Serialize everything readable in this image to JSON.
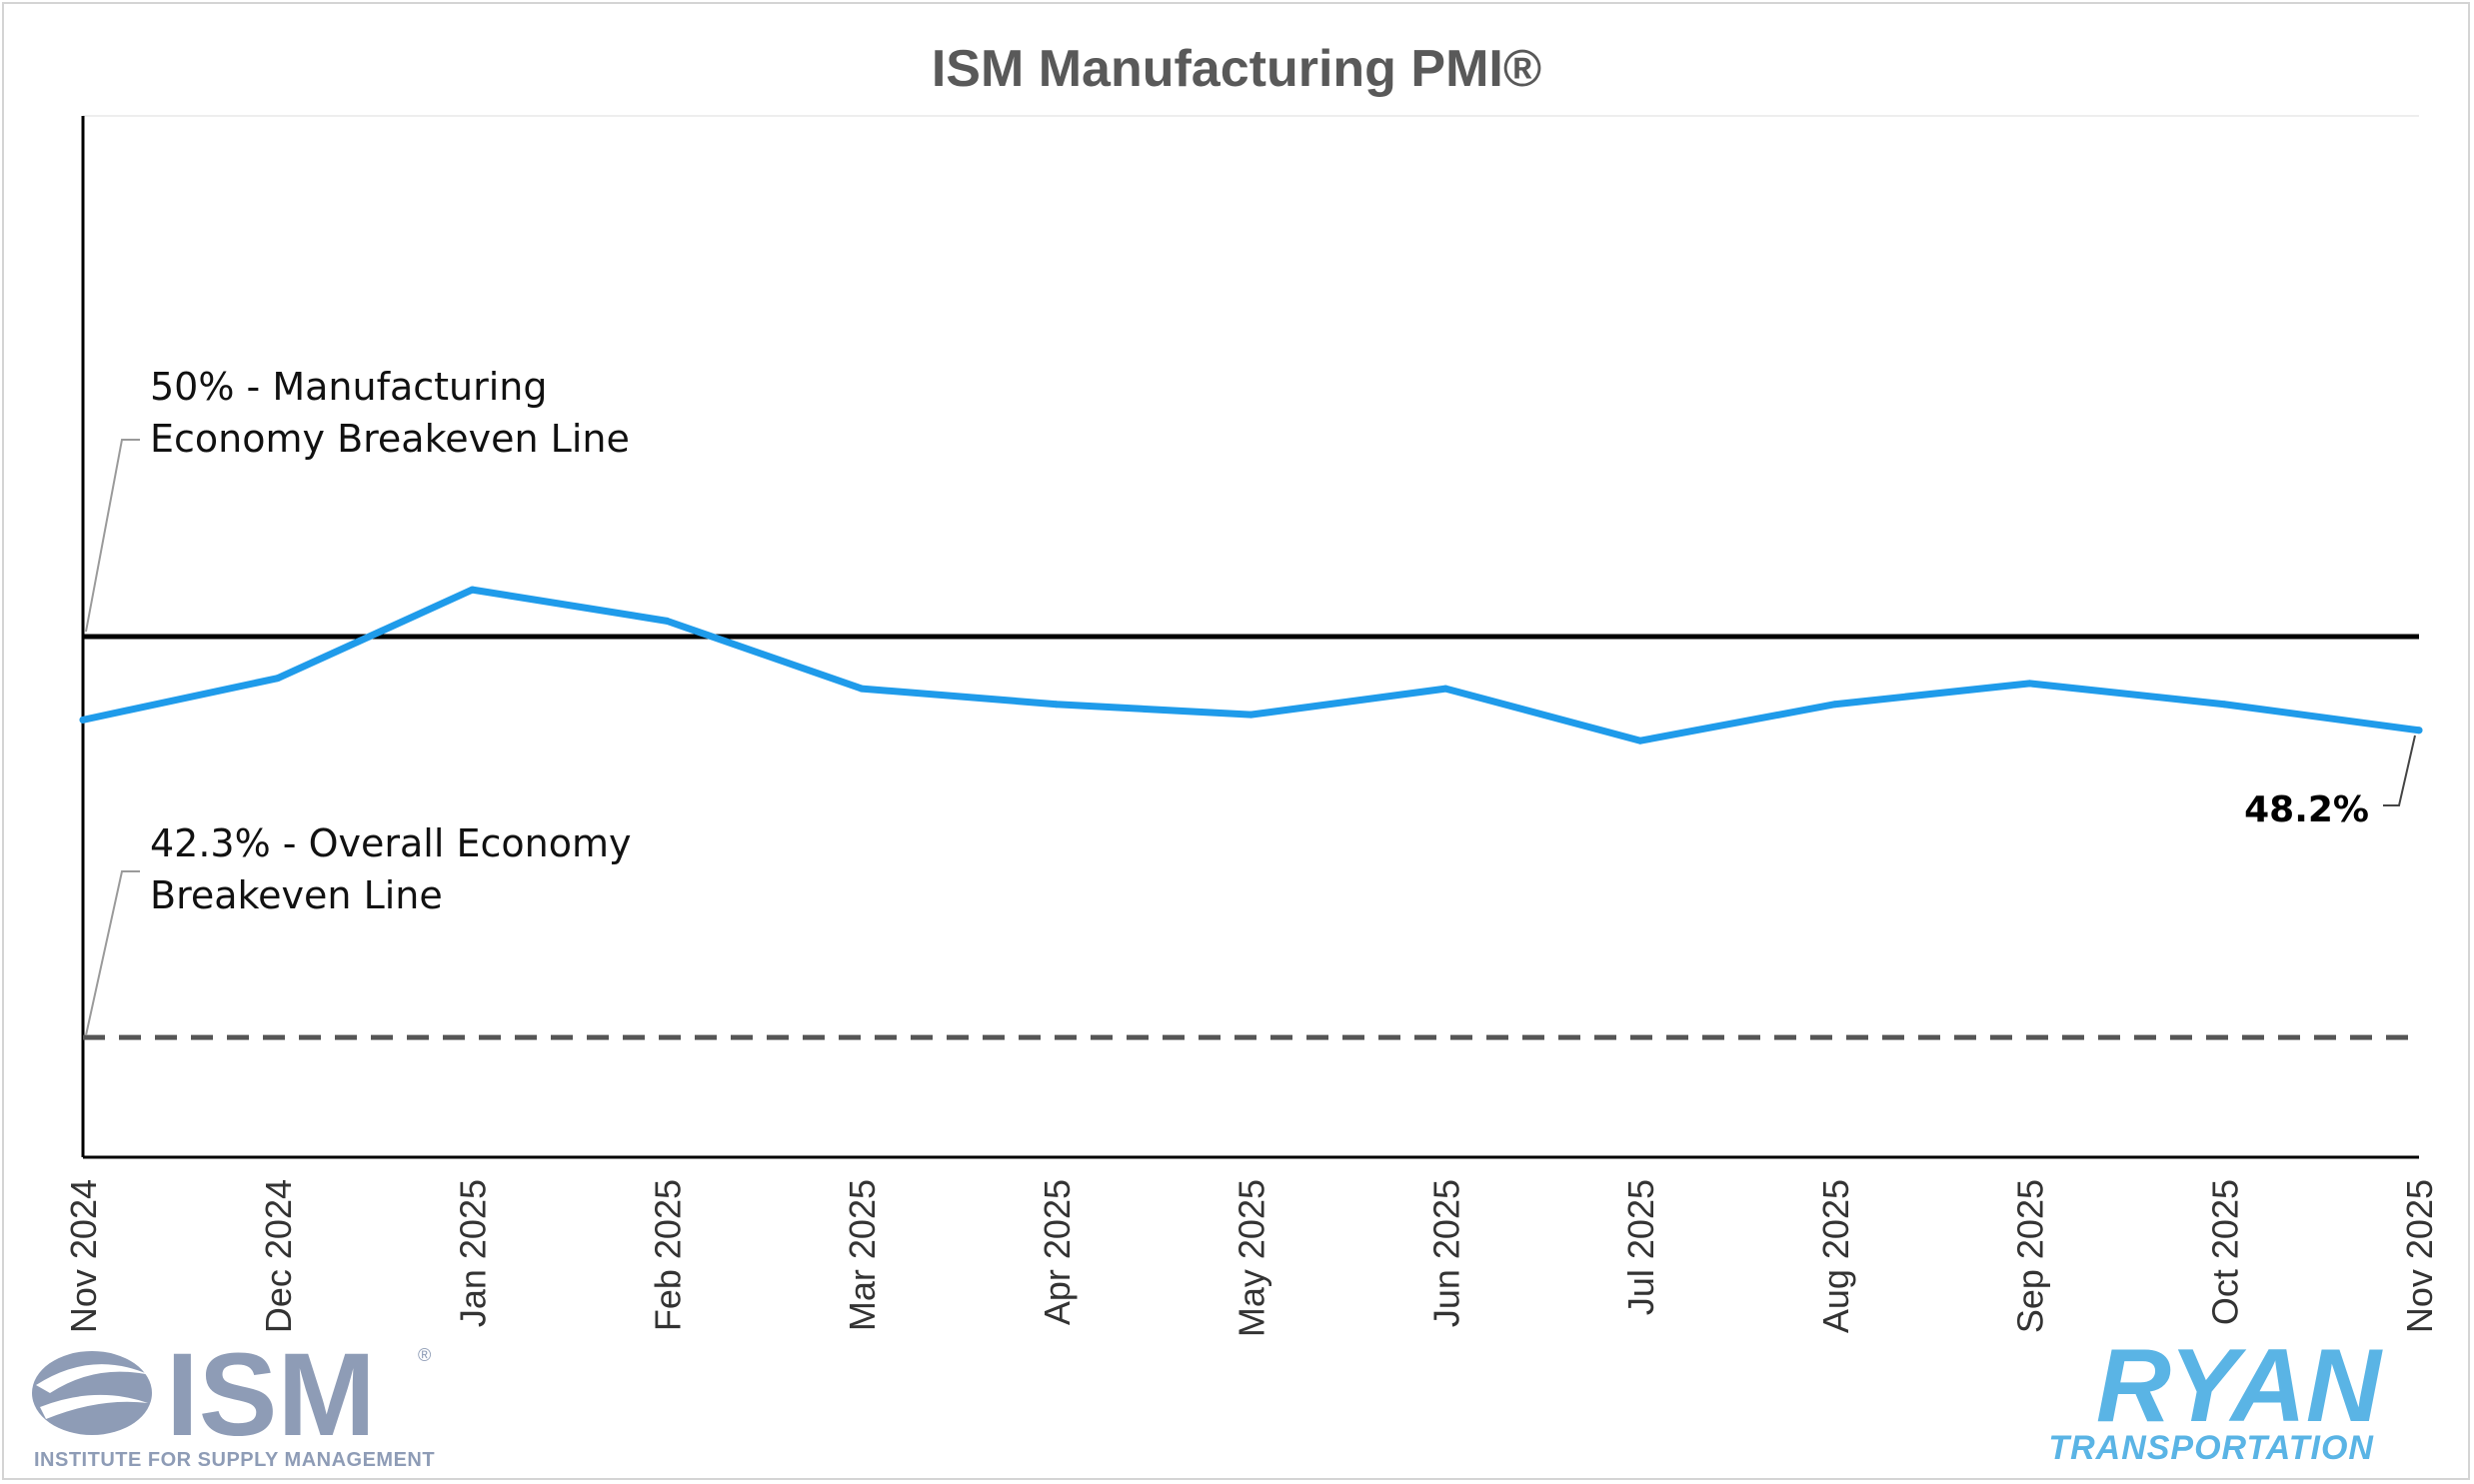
{
  "chart_data": {
    "type": "line",
    "title": "ISM Manufacturing PMI®",
    "categories": [
      "Nov 2024",
      "Dec 2024",
      "Jan 2025",
      "Feb 2025",
      "Mar 2025",
      "Apr 2025",
      "May 2025",
      "Jun 2025",
      "Jul 2025",
      "Aug 2025",
      "Sep 2025",
      "Oct 2025",
      "Nov 2025"
    ],
    "series": [
      {
        "name": "ISM Manufacturing PMI",
        "color": "#1f9bea",
        "values": [
          48.4,
          49.2,
          50.9,
          50.3,
          49.0,
          48.7,
          48.5,
          49.0,
          48.0,
          48.7,
          49.1,
          48.7,
          48.2
        ]
      }
    ],
    "ylim": [
      40.0,
      60.0
    ],
    "reference_lines": [
      {
        "value": 50.0,
        "style": "solid",
        "color": "#000000",
        "label_line1": "50% - Manufacturing",
        "label_line2": "Economy Breakeven Line"
      },
      {
        "value": 42.3,
        "style": "dashed",
        "color": "#555555",
        "label_line1": "42.3% - Overall Economy",
        "label_line2": "Breakeven Line"
      }
    ],
    "last_value_label": "48.2%",
    "grid": false
  },
  "logos": {
    "ism_text": "ISM",
    "ism_registered": "®",
    "ism_subtitle": "INSTITUTE FOR SUPPLY MANAGEMENT",
    "ryan_text": "RYAN",
    "ryan_subtitle": "TRANSPORTATION",
    "ism_color": "#8e9cb6",
    "ryan_color": "#5ab4e5"
  }
}
